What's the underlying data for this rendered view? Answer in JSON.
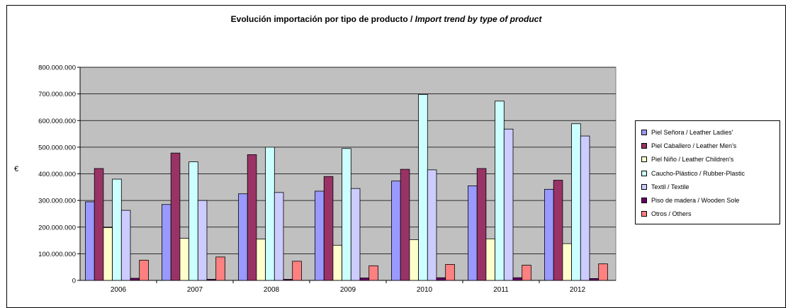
{
  "title": {
    "main": "Evolución importación por tipo de producto  / ",
    "italic": "Import trend by type of product"
  },
  "ylabel": "€",
  "chart_data": {
    "type": "bar",
    "categories": [
      "2006",
      "2007",
      "2008",
      "2009",
      "2010",
      "2011",
      "2012"
    ],
    "ylim": [
      0,
      800000000
    ],
    "yticks": [
      0,
      100000000,
      200000000,
      300000000,
      400000000,
      500000000,
      600000000,
      700000000,
      800000000
    ],
    "ytick_labels": [
      "0",
      "100.000.000",
      "200.000.000",
      "300.000.000",
      "400.000.000",
      "500.000.000",
      "600.000.000",
      "700.000.000",
      "800.000.000"
    ],
    "grid": true,
    "legend": "right",
    "series": [
      {
        "name": "Piel Señora / Leather Ladies'",
        "color": "#9999ff",
        "values": [
          295000000,
          285000000,
          325000000,
          335000000,
          373000000,
          355000000,
          342000000
        ]
      },
      {
        "name": "Piel Caballero / Leather Men's",
        "color": "#993366",
        "values": [
          420000000,
          478000000,
          472000000,
          390000000,
          417000000,
          420000000,
          376000000
        ]
      },
      {
        "name": "Piel Niño / Leather Children's",
        "color": "#ffffcc",
        "values": [
          198000000,
          158000000,
          155000000,
          132000000,
          153000000,
          156000000,
          138000000
        ]
      },
      {
        "name": "Caucho-Plástico / Rubber-Plastic",
        "color": "#ccffff",
        "values": [
          380000000,
          445000000,
          500000000,
          495000000,
          698000000,
          673000000,
          588000000
        ]
      },
      {
        "name": "Textil / Textile",
        "color": "#ccccff",
        "values": [
          263000000,
          300000000,
          330000000,
          345000000,
          415000000,
          568000000,
          542000000
        ]
      },
      {
        "name": "Piso de madera / Wooden Sole",
        "color": "#660066",
        "values": [
          8000000,
          4000000,
          4000000,
          9000000,
          10000000,
          10000000,
          7000000
        ]
      },
      {
        "name": "Otros / Others",
        "color": "#ff8080",
        "values": [
          76000000,
          88000000,
          72000000,
          55000000,
          60000000,
          57000000,
          62000000
        ]
      }
    ]
  }
}
